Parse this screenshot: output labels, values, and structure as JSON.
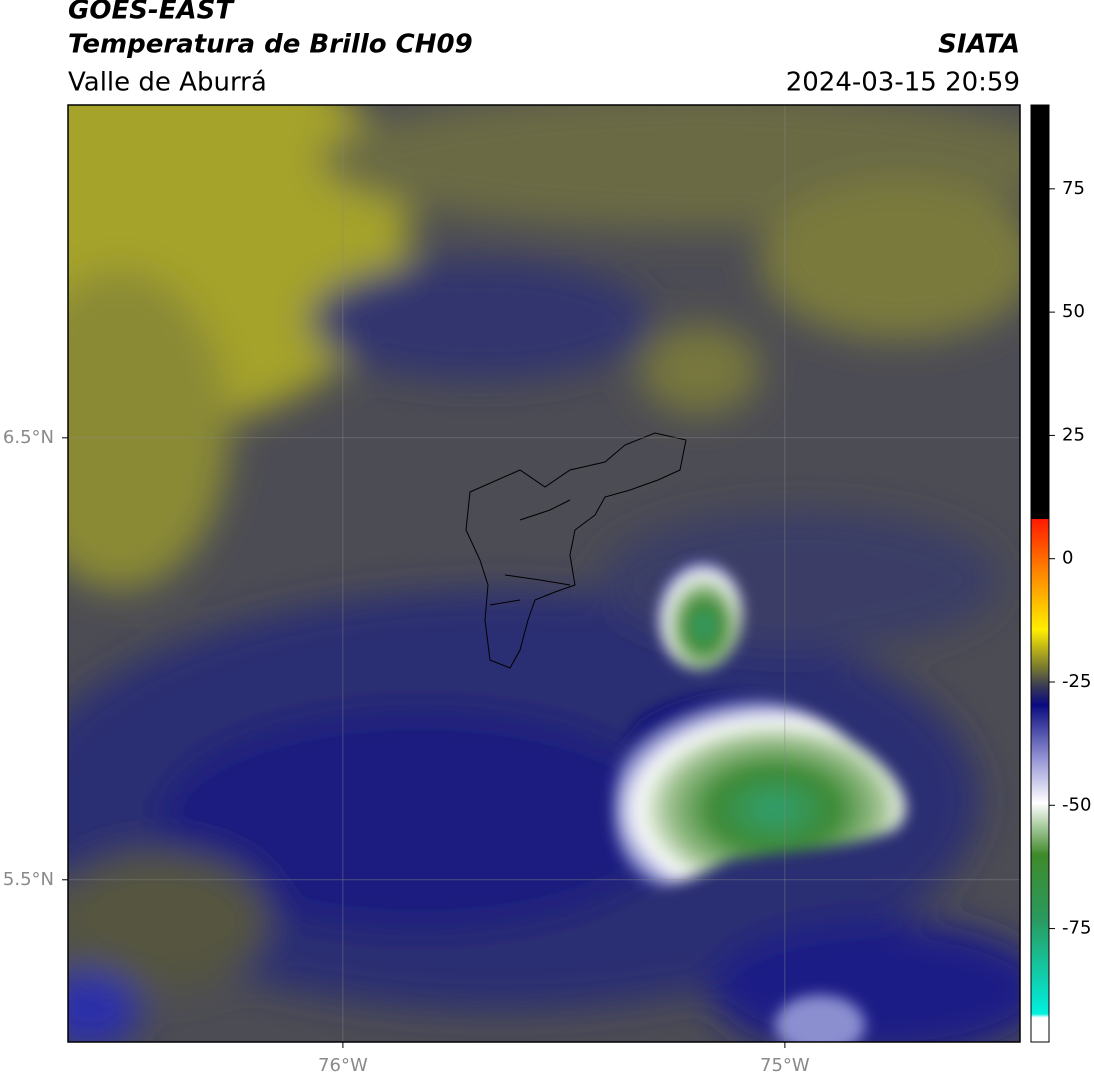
{
  "header": {
    "title": "GOES-EAST",
    "subtitle": "Temperatura de Brillo CH09",
    "source": "SIATA",
    "region": "Valle de Aburrá",
    "timestamp": "2024-03-15 20:59"
  },
  "map": {
    "lon_range": [
      -76.622,
      -74.468
    ],
    "lat_range": [
      5.133,
      7.253
    ],
    "lon_ticks": [
      {
        "value": -76,
        "label": "76°W"
      },
      {
        "value": -75,
        "label": "75°W"
      }
    ],
    "lat_ticks": [
      {
        "value": 6.5,
        "label": "6.5°N"
      },
      {
        "value": 5.5,
        "label": "5.5°N"
      }
    ],
    "grid": true
  },
  "colorbar": {
    "range": [
      -98,
      92
    ],
    "ticks": [
      75,
      50,
      25,
      0,
      -25,
      -50,
      -75
    ]
  }
}
